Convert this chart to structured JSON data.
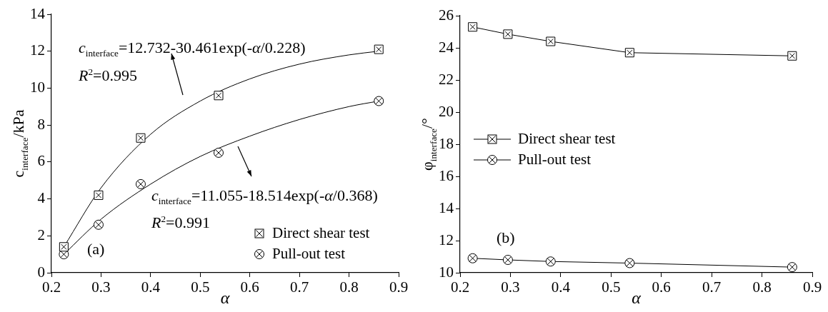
{
  "chart_data": [
    {
      "type": "scatter",
      "xlabel": "α",
      "ylabel": "c$_{interface}$/kPa",
      "xlim": [
        0.2,
        0.9
      ],
      "xticks": [
        0.2,
        0.3,
        0.4,
        0.5,
        0.6,
        0.7,
        0.8,
        0.9
      ],
      "ylim": [
        0,
        14
      ],
      "yticks": [
        0,
        2,
        4,
        6,
        8,
        10,
        12,
        14
      ],
      "grid": false,
      "legend": "bottom right",
      "annotations": [
        "c$_{interface}$=12.732-30.461exp(-α/0.228)",
        "R$^{2}$=0.995",
        "c$_{interface}$=11.055-18.514exp(-α/0.368)",
        "R$^{2}$=0.991",
        "(a)"
      ],
      "series": [
        {
          "name": "Direct shear test",
          "marker": "square",
          "color": "#000000",
          "x": [
            0.225,
            0.295,
            0.38,
            0.537,
            0.86
          ],
          "values": [
            1.4,
            4.2,
            7.3,
            9.6,
            12.1
          ]
        },
        {
          "name": "Pull-out test",
          "marker": "circle",
          "color": "#000000",
          "x": [
            0.225,
            0.295,
            0.38,
            0.537,
            0.86
          ],
          "values": [
            1.0,
            2.6,
            4.8,
            6.5,
            9.3
          ]
        },
        {
          "type": "line",
          "marker": "none",
          "color": "#000000",
          "x": [
            0.225,
            0.3,
            0.4,
            0.5,
            0.6,
            0.7,
            0.8,
            0.86
          ],
          "values": [
            1.4,
            4.6,
            7.5,
            9.3,
            10.5,
            11.3,
            11.8,
            12.0
          ]
        },
        {
          "type": "line",
          "marker": "none",
          "color": "#000000",
          "x": [
            0.225,
            0.3,
            0.4,
            0.5,
            0.6,
            0.7,
            0.8,
            0.86
          ],
          "values": [
            1.0,
            2.9,
            4.8,
            6.3,
            7.4,
            8.3,
            9.0,
            9.3
          ]
        }
      ]
    },
    {
      "type": "line",
      "xlabel": "α",
      "ylabel": "φ$_{interface}$/°",
      "xlim": [
        0.2,
        0.9
      ],
      "xticks": [
        0.2,
        0.3,
        0.4,
        0.5,
        0.6,
        0.7,
        0.8,
        0.9
      ],
      "ylim": [
        10,
        26
      ],
      "yticks": [
        10,
        12,
        14,
        16,
        18,
        20,
        22,
        24,
        26
      ],
      "grid": false,
      "legend": "center left",
      "annotations": [
        "(b)"
      ],
      "series": [
        {
          "name": "Direct shear test",
          "marker": "square",
          "color": "#000000",
          "x": [
            0.225,
            0.295,
            0.38,
            0.537,
            0.86
          ],
          "values": [
            25.3,
            24.85,
            24.4,
            23.7,
            23.5
          ]
        },
        {
          "name": "Pull-out test",
          "marker": "circle",
          "color": "#000000",
          "x": [
            0.225,
            0.295,
            0.38,
            0.537,
            0.86
          ],
          "values": [
            10.9,
            10.8,
            10.7,
            10.6,
            10.35
          ]
        }
      ]
    }
  ]
}
